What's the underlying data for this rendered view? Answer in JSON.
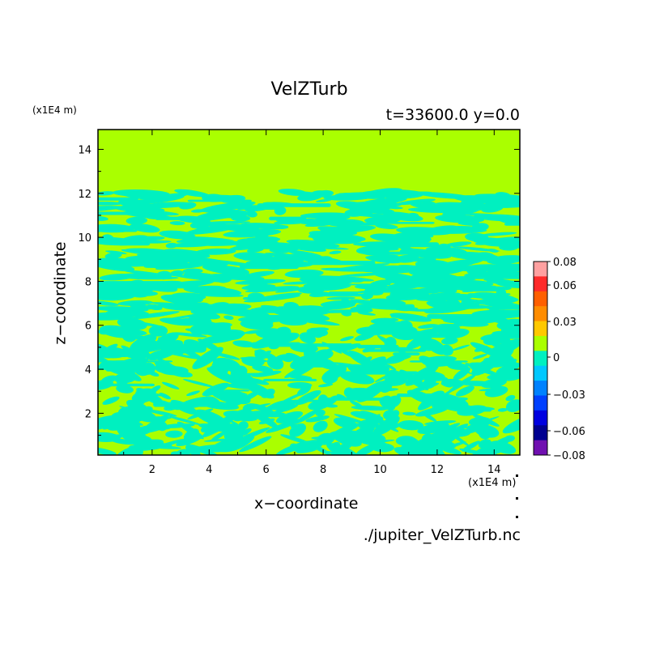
{
  "chart_data": {
    "type": "heatmap",
    "title": "VelZTurb",
    "subtitle": "t=33600.0 y=0.0",
    "xlabel": "x−coordinate",
    "ylabel": "z−coordinate",
    "x_unit": "(x1E4 m)",
    "y_unit": "(x1E4 m)",
    "xlim": [
      0.1,
      14.9
    ],
    "ylim": [
      0.1,
      14.9
    ],
    "x_ticks": [
      "2",
      "4",
      "6",
      "8",
      "10",
      "12",
      "14"
    ],
    "y_ticks": [
      "2",
      "4",
      "6",
      "8",
      "10",
      "12",
      "14"
    ],
    "colorbar": {
      "tick_labels": [
        "0.08",
        "0.06",
        "0.03",
        "0",
        "−0.03",
        "−0.06",
        "−0.08"
      ],
      "levels": [
        {
          "color": "#ffa0a0"
        },
        {
          "color": "#ff2a2a"
        },
        {
          "color": "#ff5f00"
        },
        {
          "color": "#ff8c00"
        },
        {
          "color": "#ffc800"
        },
        {
          "color": "#aaff00"
        },
        {
          "color": "#00f0c0"
        },
        {
          "color": "#00c8ff"
        },
        {
          "color": "#0082ff"
        },
        {
          "color": "#0040ff"
        },
        {
          "color": "#0000e0"
        },
        {
          "color": "#000090"
        },
        {
          "color": "#7010b0"
        }
      ]
    },
    "description_colors": {
      "zero_band": "#aaff00",
      "negative_band": "#00f0c0"
    },
    "source_label": "./jupiter_VelZTurb.nc"
  }
}
